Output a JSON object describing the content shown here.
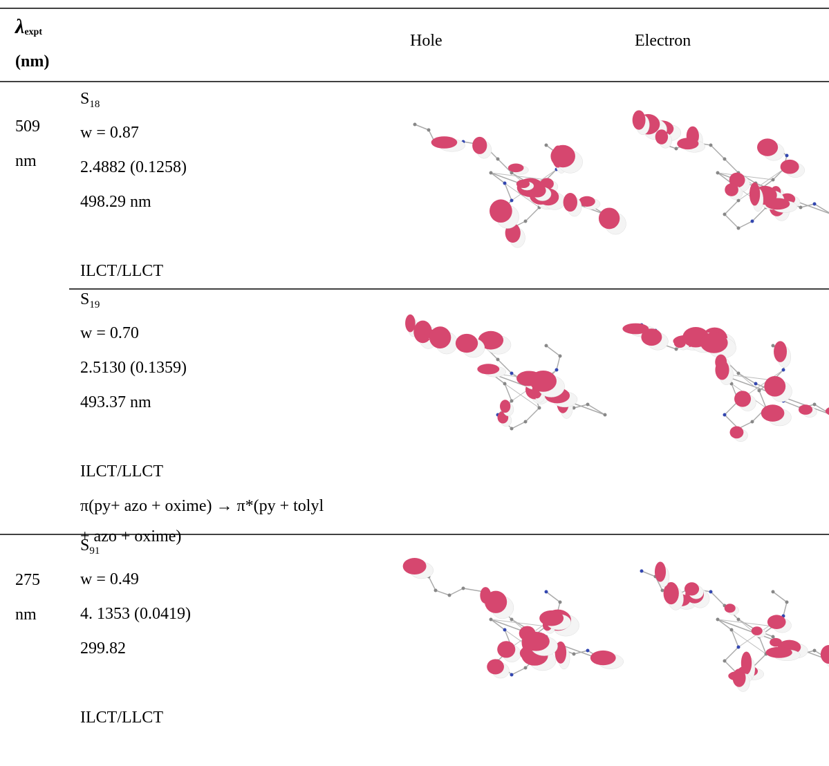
{
  "header": {
    "lambda_symbol": "λ",
    "lambda_sub": "expt",
    "unit": "(nm)",
    "hole": "Hole",
    "electron": "Electron"
  },
  "groups": [
    {
      "lambda": "509",
      "unit": "nm",
      "states": [
        {
          "state": "S",
          "state_sub": "18",
          "w": "w = 0.87",
          "energy": "2.4882 (0.1258)",
          "wavelength": "498.29 nm",
          "type": "ILCT/LLCT"
        },
        {
          "state": "S",
          "state_sub": "19",
          "w": "w = 0.70",
          "energy": "2.5130 (0.1359)",
          "wavelength": "493.37 nm",
          "type": "ILCT/LLCT",
          "description_1": "π(py+ azo + oxime) → π*(py + tolyl",
          "description_2": "+ azo + oxime)"
        }
      ]
    },
    {
      "lambda": "275",
      "unit": "nm",
      "states": [
        {
          "state": "S",
          "state_sub": "91",
          "w": "w = 0.49",
          "energy": "4. 1353 (0.0419)",
          "wavelength": "299.82",
          "type": "ILCT/LLCT"
        }
      ]
    }
  ]
}
